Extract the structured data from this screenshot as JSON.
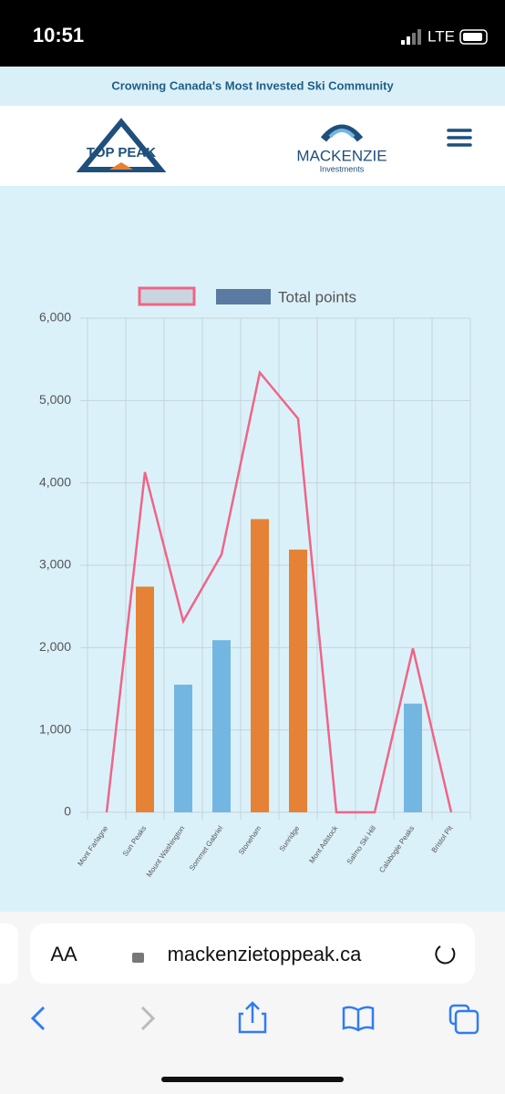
{
  "status_bar": {
    "time": "10:51",
    "network": "LTE"
  },
  "banner": {
    "text": "Crowning Canada's Most Invested Ski Community"
  },
  "header": {
    "logo_left": "TOP PEAK",
    "logo_right": "MACKENZIE",
    "logo_right_sub": "Investments"
  },
  "chart_data": {
    "type": "bar",
    "categories": [
      "Mont Farlagne",
      "Sun Peaks",
      "Mount Washington",
      "Sommet Gabriel",
      "Stoneham",
      "Sunridge",
      "Mont Adstock",
      "Salmo Ski Hill",
      "Calabogie Peaks",
      "Bristol Pit"
    ],
    "series": [
      {
        "type": "line",
        "color": "#ef6587",
        "legend_fill": "#c9d6df",
        "values": [
          0,
          4130,
          2320,
          3130,
          5340,
          4780,
          0,
          0,
          1990,
          0
        ]
      },
      {
        "type": "bar",
        "name": "Total points",
        "color": "#5b7aa1",
        "colors": [
          "#e58236",
          "#e58236",
          "#74b6e2",
          "#74b6e2",
          "#e58236",
          "#e58236",
          "#74b6e2",
          "#74b6e2",
          "#74b6e2",
          "#74b6e2"
        ],
        "values": [
          0,
          2740,
          1550,
          2090,
          3560,
          3190,
          0,
          0,
          1320,
          0
        ]
      }
    ],
    "ylim": [
      0,
      6000
    ],
    "yticks": [
      0,
      {
        "value": 1000,
        "label": "1,000"
      },
      {
        "value": 2000,
        "label": "2,000"
      },
      {
        "value": 3000,
        "label": "3,000"
      },
      {
        "value": 4000,
        "label": "4,000"
      },
      {
        "value": 5000,
        "label": "5,000"
      },
      {
        "value": 6000,
        "label": "6,000"
      }
    ],
    "grid": true,
    "legend": "top"
  },
  "browser": {
    "text_size": "AA",
    "url": "mackenzietoppeak.ca"
  }
}
